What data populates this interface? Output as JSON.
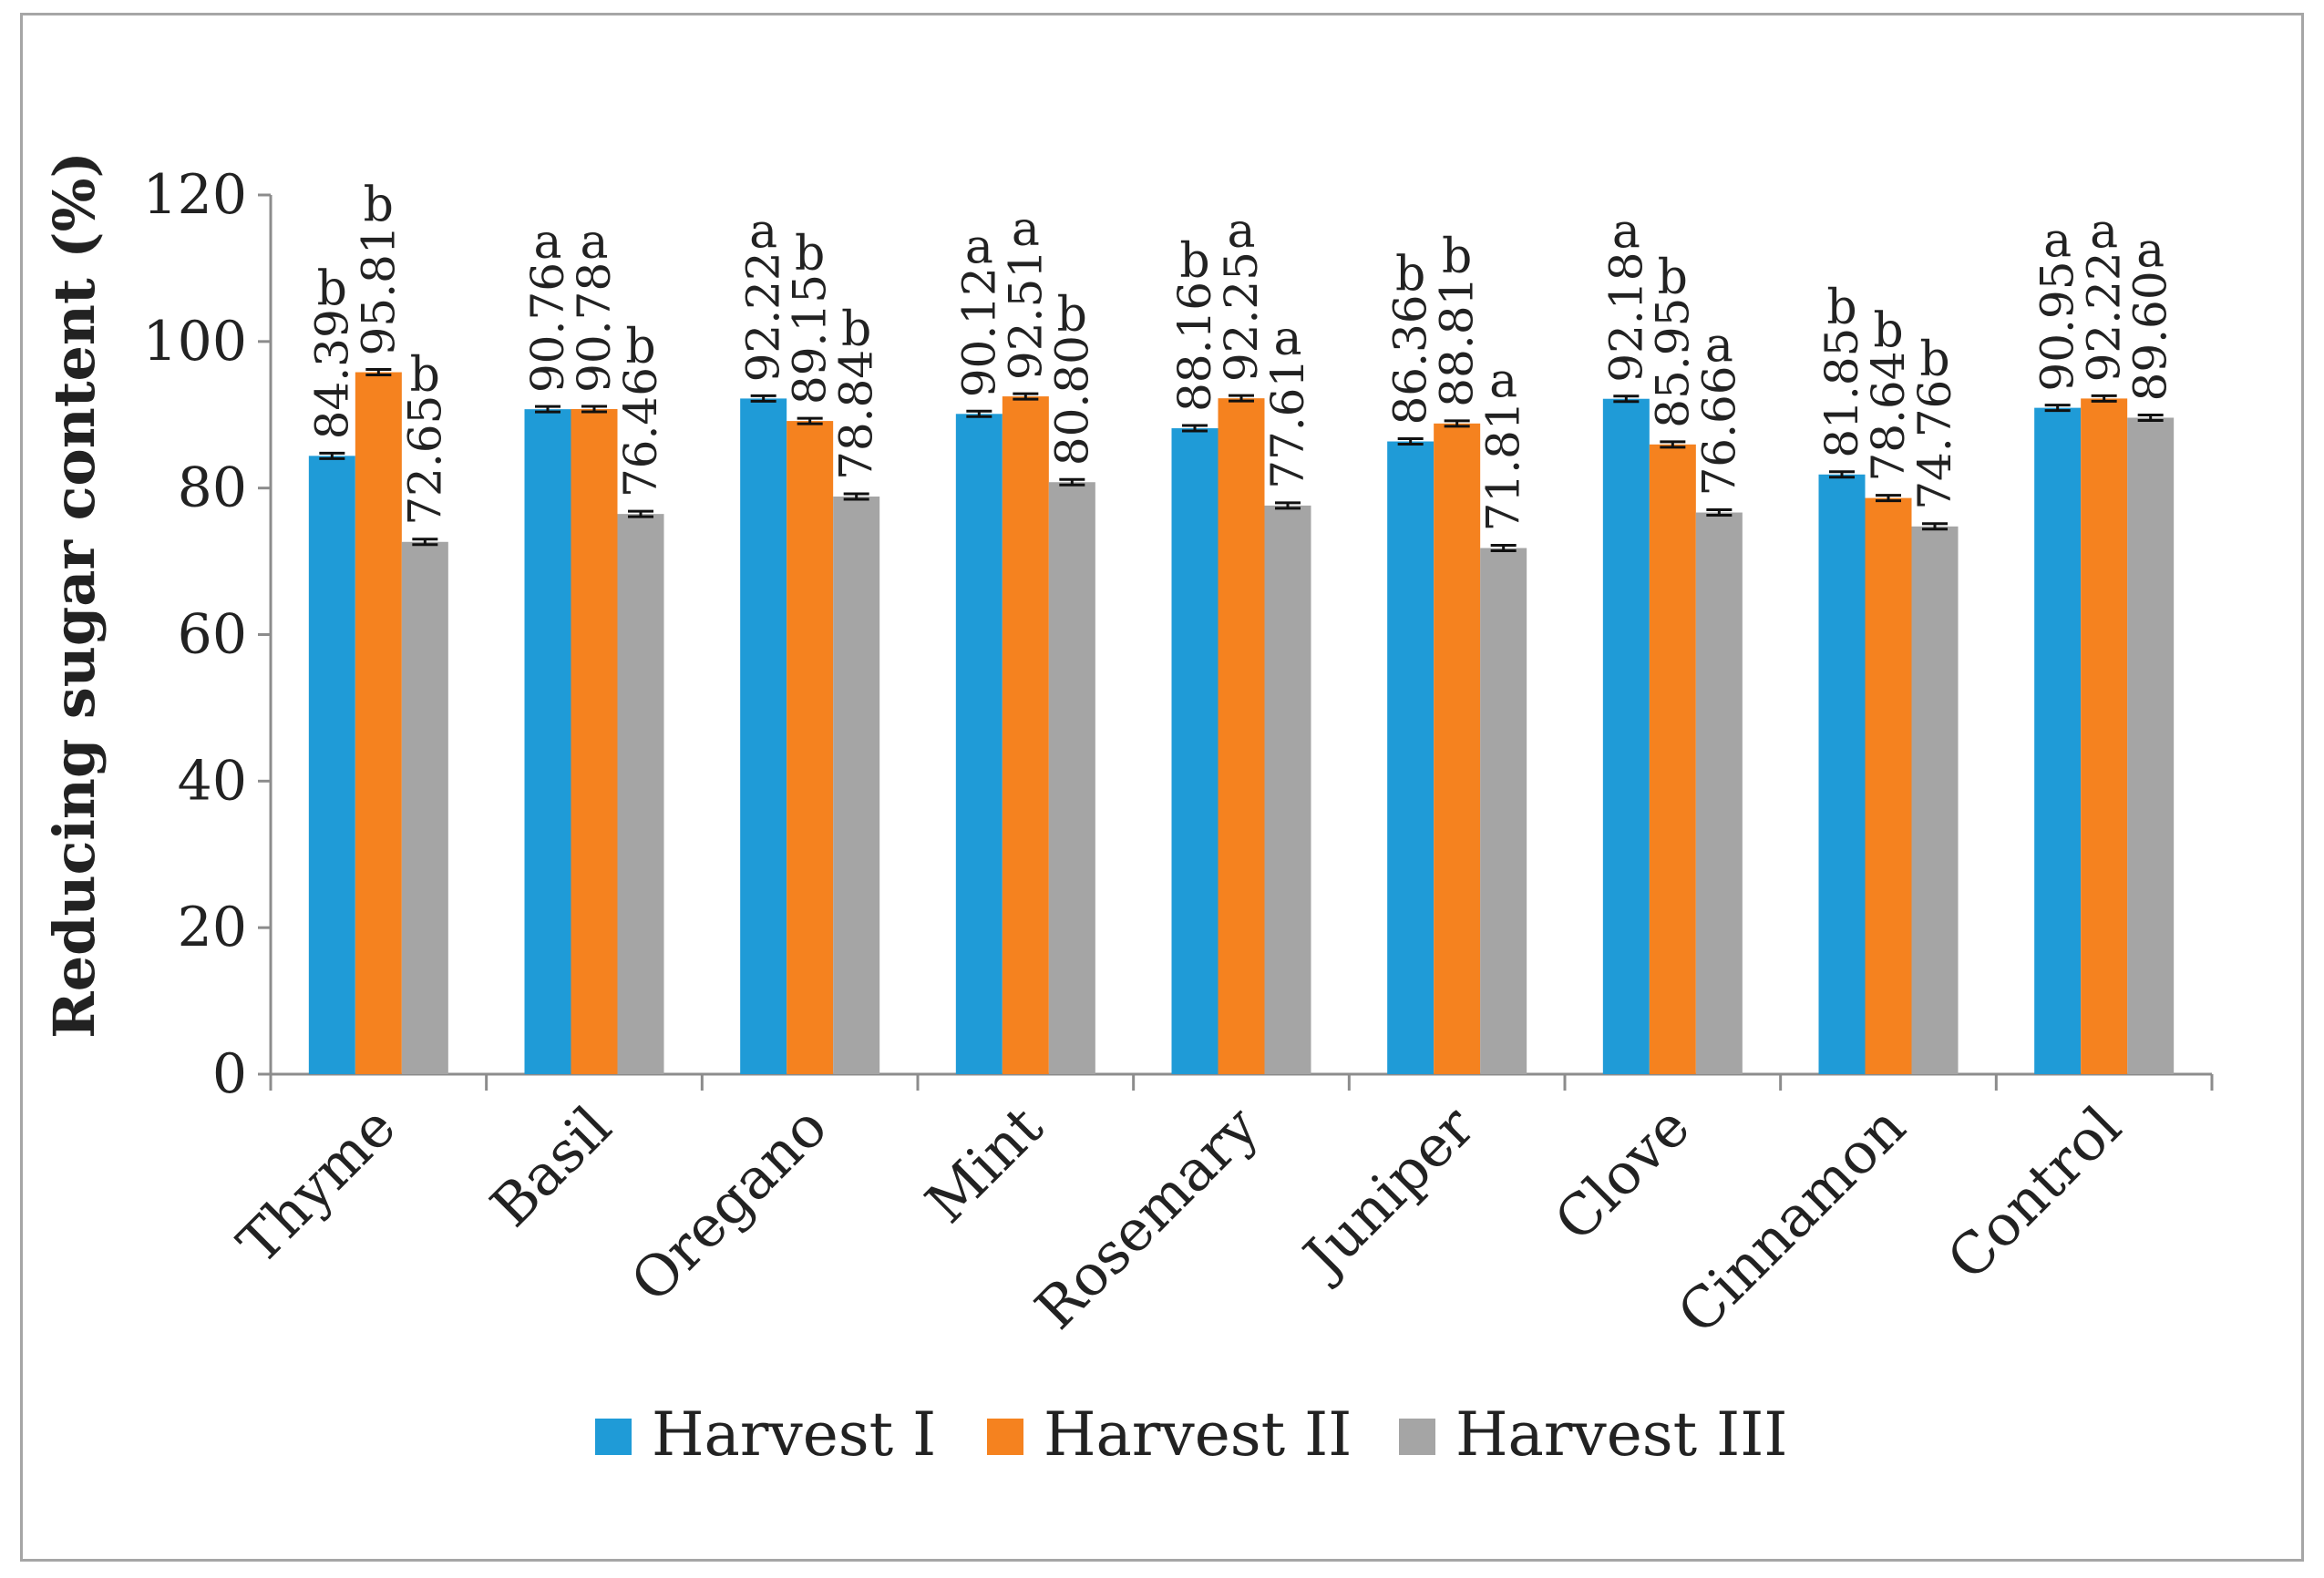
{
  "chart_data": {
    "type": "bar",
    "ylabel": "Reducing sugar content (%)",
    "xlabel": "",
    "ylim": [
      0,
      120
    ],
    "yticks": [
      0,
      20,
      40,
      60,
      80,
      100,
      120
    ],
    "grid": false,
    "legend_position": "bottom",
    "categories": [
      "Thyme",
      "Basil",
      "Oregano",
      "Mint",
      "Rosemary",
      "Juniper",
      "Clove",
      "Cinnamon",
      "Control"
    ],
    "series": [
      {
        "name": "Harvest I",
        "color": "#1f9bd7",
        "values": [
          84.39,
          90.76,
          92.22,
          90.12,
          88.16,
          86.36,
          92.18,
          81.85,
          90.95
        ],
        "value_labels": [
          "84.39",
          "90.76",
          "92.22",
          "90.12",
          "88.16",
          "86.36",
          "92.18",
          "81.85",
          "90.95"
        ],
        "letters": [
          "b",
          "a",
          "a",
          "a",
          "b",
          "b",
          "a",
          "b",
          "a"
        ]
      },
      {
        "name": "Harvest II",
        "color": "#f5821f",
        "values": [
          95.81,
          90.78,
          89.15,
          92.51,
          92.25,
          88.81,
          85.95,
          78.64,
          92.22
        ],
        "value_labels": [
          "95.81",
          "90.78",
          "89.15",
          "92.51",
          "92.25",
          "88.81",
          "85.95",
          "78.64",
          "92.22"
        ],
        "letters": [
          "b",
          "a",
          "b",
          "a",
          "a",
          "b",
          "b",
          "b",
          "a"
        ]
      },
      {
        "name": "Harvest III",
        "color": "#a5a5a5",
        "values": [
          72.65,
          76.46,
          78.84,
          80.8,
          77.61,
          71.81,
          76.66,
          74.76,
          89.6
        ],
        "value_labels": [
          "72.65",
          "76.46",
          "78.84",
          "80.80",
          "77.61",
          "71.81",
          "76.66",
          "74.76",
          "89.60"
        ],
        "letters": [
          "b",
          "b",
          "b",
          "b",
          "a",
          "a",
          "a",
          "b",
          "a"
        ]
      }
    ]
  }
}
